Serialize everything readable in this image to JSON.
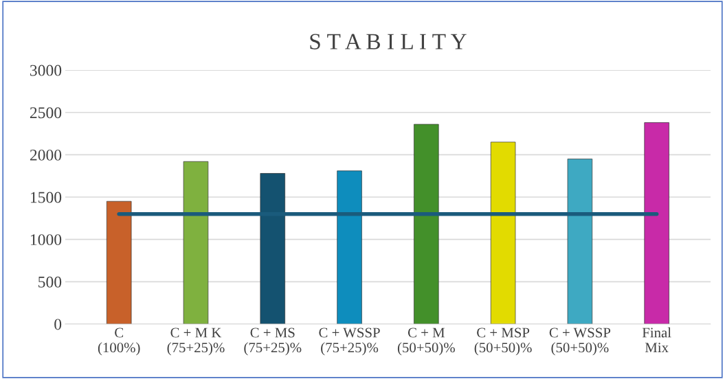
{
  "chart_data": {
    "type": "bar",
    "title": "S T A B I L I T Y",
    "categories": [
      "C\n(100%)",
      "C + M K\n(75+25)%",
      "C + MS\n(75+25)%",
      "C + WSSP\n(75+25)%",
      "C + M\n(50+50)%",
      "C + MSP\n(50+50)%",
      "C + WSSP\n(50+50)%",
      "Final\nMix"
    ],
    "series": [
      {
        "colors": [
          "#c8612a",
          "#7fb13f",
          "#145270",
          "#0e8dbd",
          "#43902a",
          "#e2db00",
          "#3ea9c2",
          "#c82aa8"
        ],
        "values": [
          1450,
          1920,
          1780,
          1810,
          2360,
          2150,
          1950,
          2380
        ]
      },
      {
        "type": "line",
        "color": "#1a5b7c",
        "values": [
          1300,
          1300,
          1300,
          1300,
          1300,
          1300,
          1300,
          1300
        ]
      }
    ],
    "ylim": [
      0,
      3000
    ],
    "yticks": [
      0,
      500,
      1000,
      1500,
      2000,
      2500,
      3000
    ],
    "grid": "y"
  }
}
